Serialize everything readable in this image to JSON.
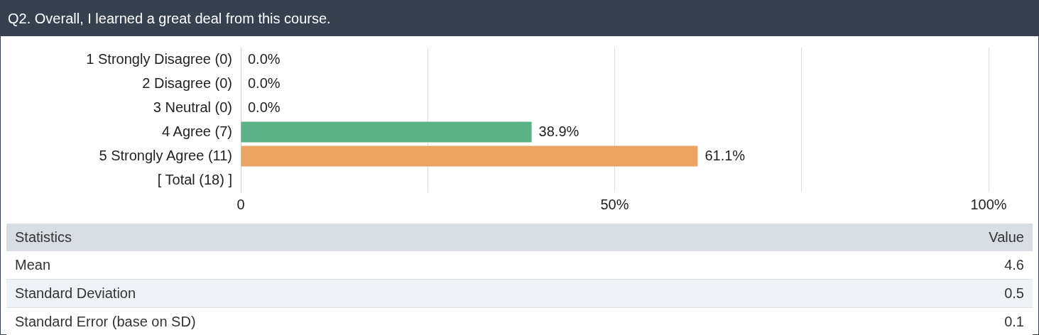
{
  "chart_data": {
    "type": "bar",
    "orientation": "horizontal",
    "title": "Q2. Overall, I learned a great deal from this course.",
    "categories": [
      "1 Strongly Disagree (0)",
      "2 Disagree (0)",
      "3 Neutral (0)",
      "4 Agree (7)",
      "5 Strongly Agree (11)",
      "[ Total (18) ]"
    ],
    "values": [
      0,
      0,
      0,
      38.9,
      61.1,
      null
    ],
    "colors": [
      "#5bb286",
      "#5bb286",
      "#5bb286",
      "#5bb286",
      "#eba462",
      "#5bb286"
    ],
    "value_labels": [
      "0.0%",
      "0.0%",
      "0.0%",
      "38.9%",
      "61.1%",
      null
    ],
    "xlim": [
      0,
      100
    ],
    "xticks": [
      {
        "value": 0,
        "label": "0"
      },
      {
        "value": 25,
        "label": null
      },
      {
        "value": 50,
        "label": "50%"
      },
      {
        "value": 75,
        "label": null
      },
      {
        "value": 100,
        "label": "100%"
      }
    ],
    "grid": "x",
    "legend": false,
    "annotations": [
      "Statistics",
      "Value",
      "Mean",
      "4.6",
      "Standard Deviation",
      "0.5",
      "Standard Error (base on SD)",
      "0.1"
    ]
  }
}
